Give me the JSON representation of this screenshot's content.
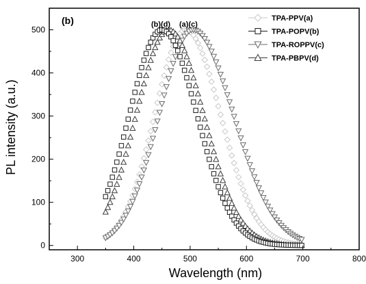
{
  "chart_data": {
    "type": "scatter",
    "panel_label": "(b)",
    "xlabel": "Wavelength (nm)",
    "ylabel": "PL intensity (a.u.)",
    "xlim": [
      250,
      800
    ],
    "ylim": [
      -10,
      550
    ],
    "x_ticks": [
      300,
      400,
      500,
      600,
      700,
      800
    ],
    "y_ticks": [
      0,
      100,
      200,
      300,
      400,
      500
    ],
    "grid": false,
    "legend_position": "top-right",
    "annotations": [
      "(b)(d)",
      "(a)(c)"
    ],
    "series": [
      {
        "name": "TPA-PPV(a)",
        "marker": "diamond",
        "color": "#c8c8c8",
        "peak_x": 492,
        "peak_y": 500,
        "width_left": 55,
        "width_right": 62
      },
      {
        "name": "TPA-POPV(b)",
        "marker": "square",
        "color": "#1a1a1a",
        "peak_x": 450,
        "peak_y": 500,
        "width_left": 58,
        "width_right": 62
      },
      {
        "name": "TPA-ROPPV(c)",
        "marker": "triangle-down",
        "color": "#6a6a6a",
        "peak_x": 505,
        "peak_y": 500,
        "width_left": 60,
        "width_right": 72
      },
      {
        "name": "TPA-PBPV(d)",
        "marker": "triangle-up",
        "color": "#3a3a3a",
        "peak_x": 462,
        "peak_y": 500,
        "width_left": 58,
        "width_right": 62
      }
    ]
  }
}
